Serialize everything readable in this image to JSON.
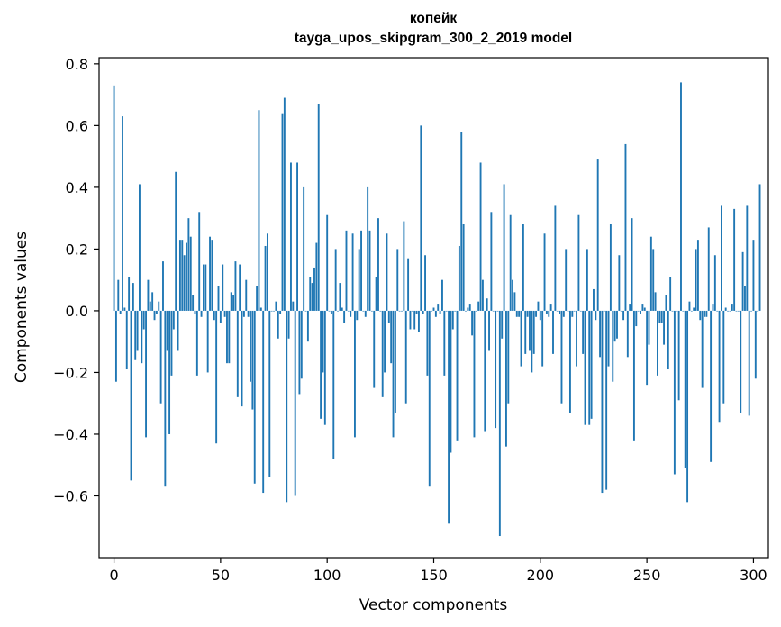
{
  "chart_data": {
    "type": "bar",
    "title": "копейк",
    "subtitle": "tayga_upos_skipgram_300_2_2019 model",
    "xlabel": "Vector components",
    "ylabel": "Components values",
    "xlim": [
      -7,
      307
    ],
    "ylim": [
      -0.8,
      0.82
    ],
    "xticks": [
      0,
      50,
      100,
      150,
      200,
      250,
      300
    ],
    "xtick_labels": [
      "0",
      "50",
      "100",
      "150",
      "200",
      "250",
      "300"
    ],
    "yticks": [
      -0.6,
      -0.4,
      -0.2,
      0.0,
      0.2,
      0.4,
      0.6,
      0.8
    ],
    "ytick_labels": [
      "−0.6",
      "−0.4",
      "−0.2",
      "0.0",
      "0.2",
      "0.4",
      "0.6",
      "0.8"
    ],
    "bar_color": "#1f77b4",
    "values": [
      0.73,
      -0.23,
      0.1,
      -0.01,
      0.63,
      0.01,
      -0.19,
      0.11,
      -0.55,
      0.09,
      -0.16,
      -0.13,
      0.41,
      -0.17,
      -0.06,
      -0.41,
      0.1,
      0.03,
      0.06,
      -0.03,
      -0.01,
      0.03,
      -0.3,
      0.16,
      -0.57,
      -0.13,
      -0.4,
      -0.21,
      -0.06,
      0.45,
      -0.13,
      0.23,
      0.23,
      0.18,
      0.22,
      0.3,
      0.24,
      0.05,
      -0.01,
      -0.21,
      0.32,
      -0.02,
      0.15,
      0.15,
      -0.2,
      0.24,
      0.23,
      -0.03,
      -0.43,
      0.08,
      -0.04,
      0.15,
      -0.02,
      -0.17,
      -0.17,
      0.06,
      0.05,
      0.16,
      -0.28,
      0.15,
      -0.31,
      -0.02,
      0.1,
      -0.02,
      -0.23,
      -0.32,
      -0.56,
      0.08,
      0.65,
      0.01,
      -0.59,
      0.21,
      0.25,
      -0.54,
      0.0,
      0.0,
      0.03,
      -0.09,
      -0.01,
      0.64,
      0.69,
      -0.62,
      -0.09,
      0.48,
      0.03,
      -0.6,
      0.48,
      -0.27,
      -0.22,
      0.4,
      0.0,
      -0.1,
      0.11,
      0.09,
      0.14,
      0.22,
      0.67,
      -0.35,
      -0.2,
      -0.37,
      0.31,
      0.0,
      -0.01,
      -0.48,
      0.2,
      0.0,
      0.09,
      0.01,
      -0.04,
      0.26,
      0.0,
      -0.02,
      0.25,
      -0.41,
      -0.03,
      0.2,
      0.26,
      0.0,
      -0.02,
      0.4,
      0.26,
      0.0,
      -0.25,
      0.11,
      0.3,
      0.0,
      -0.28,
      -0.2,
      0.25,
      -0.04,
      -0.17,
      -0.41,
      -0.33,
      0.2,
      0.0,
      0.0,
      0.29,
      -0.3,
      0.17,
      -0.06,
      0.0,
      -0.06,
      -0.01,
      -0.07,
      0.6,
      -0.01,
      0.18,
      -0.21,
      -0.57,
      0.0,
      0.01,
      -0.02,
      0.02,
      -0.01,
      0.1,
      -0.21,
      0.0,
      -0.69,
      -0.46,
      -0.06,
      0.0,
      -0.42,
      0.21,
      0.58,
      0.28,
      0.0,
      0.01,
      0.02,
      -0.08,
      -0.41,
      0.0,
      0.03,
      0.48,
      0.1,
      -0.39,
      0.04,
      -0.13,
      0.32,
      0.0,
      -0.38,
      0.0,
      -0.73,
      -0.09,
      0.41,
      -0.44,
      -0.3,
      0.31,
      0.1,
      0.06,
      -0.02,
      -0.02,
      -0.18,
      0.28,
      -0.14,
      -0.02,
      -0.13,
      -0.2,
      -0.14,
      -0.02,
      0.03,
      -0.03,
      -0.18,
      0.25,
      -0.01,
      -0.02,
      0.02,
      -0.14,
      0.34,
      0.0,
      -0.01,
      -0.3,
      -0.02,
      0.2,
      0.0,
      -0.33,
      -0.02,
      0.0,
      -0.18,
      0.31,
      0.0,
      -0.14,
      -0.37,
      0.2,
      -0.37,
      -0.35,
      0.07,
      -0.03,
      0.49,
      -0.15,
      -0.59,
      0.0,
      -0.58,
      -0.18,
      0.28,
      -0.23,
      -0.1,
      -0.09,
      0.18,
      0.0,
      -0.03,
      0.54,
      -0.15,
      0.02,
      0.3,
      -0.42,
      -0.05,
      0.0,
      -0.01,
      0.02,
      0.01,
      -0.24,
      -0.11,
      0.24,
      0.2,
      0.06,
      -0.21,
      -0.04,
      -0.04,
      -0.11,
      0.05,
      -0.19,
      0.11,
      0.0,
      -0.53,
      0.0,
      -0.29,
      0.74,
      0.0,
      -0.51,
      -0.62,
      0.03,
      0.0,
      0.01,
      0.2,
      0.23,
      -0.03,
      -0.25,
      -0.02,
      -0.02,
      0.27,
      -0.49,
      0.02,
      0.18,
      0.0,
      -0.36,
      0.34,
      -0.3,
      0.01,
      0.0,
      0.0,
      0.02,
      0.33,
      0.0,
      0.0,
      -0.33,
      0.19,
      0.08,
      0.34,
      -0.34,
      0.0,
      0.23,
      -0.22,
      0.0,
      0.41
    ]
  }
}
